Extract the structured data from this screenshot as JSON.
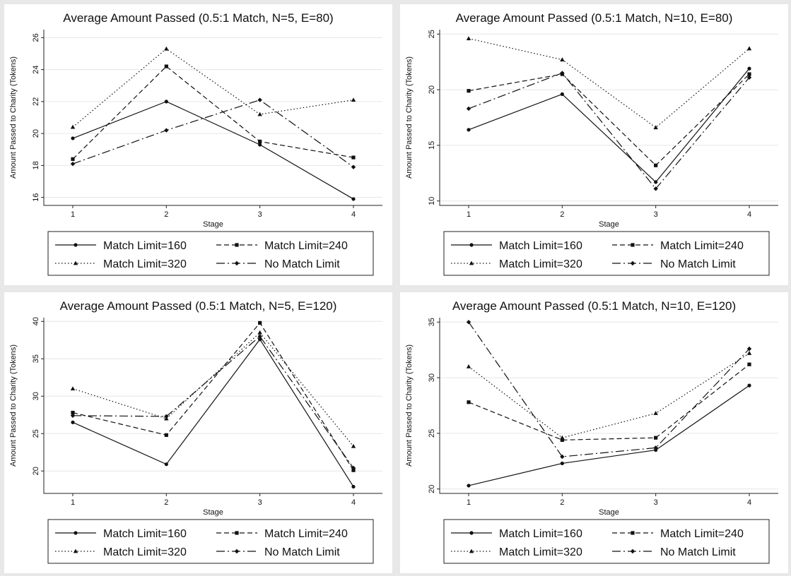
{
  "chart_data": [
    {
      "type": "line",
      "title": "Average Amount Passed (0.5:1 Match, N=5, E=80)",
      "xlabel": "Stage",
      "ylabel": "Amount Passed to Charity (Tokens)",
      "x": [
        1,
        2,
        3,
        4
      ],
      "ylim": [
        15.5,
        26.5
      ],
      "yticks": [
        16,
        18,
        20,
        22,
        24,
        26
      ],
      "grid": true,
      "legend_position": "bottom",
      "series": [
        {
          "name": "Match Limit=160",
          "style": "solid",
          "marker": "circle",
          "values": [
            19.7,
            22.0,
            19.3,
            15.9
          ]
        },
        {
          "name": "Match Limit=240",
          "style": "dash",
          "marker": "square",
          "values": [
            18.4,
            24.2,
            19.5,
            18.5
          ]
        },
        {
          "name": "Match Limit=320",
          "style": "dot",
          "marker": "triangle",
          "values": [
            20.4,
            25.3,
            21.2,
            22.1
          ]
        },
        {
          "name": "No Match Limit",
          "style": "longdash-dot",
          "marker": "diamond",
          "values": [
            18.1,
            20.2,
            22.1,
            17.9
          ]
        }
      ]
    },
    {
      "type": "line",
      "title": "Average Amount Passed (0.5:1 Match, N=10, E=80)",
      "xlabel": "Stage",
      "ylabel": "Amount Passed to Charity (Tokens)",
      "x": [
        1,
        2,
        3,
        4
      ],
      "ylim": [
        9.6,
        25.4
      ],
      "yticks": [
        10,
        15,
        20,
        25
      ],
      "grid": true,
      "legend_position": "bottom",
      "series": [
        {
          "name": "Match Limit=160",
          "style": "solid",
          "marker": "circle",
          "values": [
            16.4,
            19.6,
            11.7,
            21.9
          ]
        },
        {
          "name": "Match Limit=240",
          "style": "dash",
          "marker": "square",
          "values": [
            19.9,
            21.4,
            13.2,
            21.4
          ]
        },
        {
          "name": "Match Limit=320",
          "style": "dot",
          "marker": "triangle",
          "values": [
            24.6,
            22.7,
            16.6,
            23.7
          ]
        },
        {
          "name": "No Match Limit",
          "style": "longdash-dot",
          "marker": "diamond",
          "values": [
            18.3,
            21.5,
            11.1,
            21.1
          ]
        }
      ]
    },
    {
      "type": "line",
      "title": "Average Amount Passed (0.5:1 Match, N=5, E=120)",
      "xlabel": "Stage",
      "ylabel": "Amount Passed to Charity (Tokens)",
      "x": [
        1,
        2,
        3,
        4
      ],
      "ylim": [
        17.0,
        40.5
      ],
      "yticks": [
        20,
        25,
        30,
        35,
        40
      ],
      "grid": true,
      "legend_position": "bottom",
      "series": [
        {
          "name": "Match Limit=160",
          "style": "solid",
          "marker": "circle",
          "values": [
            26.5,
            20.9,
            37.6,
            17.9
          ]
        },
        {
          "name": "Match Limit=240",
          "style": "dash",
          "marker": "square",
          "values": [
            27.8,
            24.8,
            39.8,
            20.1
          ]
        },
        {
          "name": "Match Limit=320",
          "style": "dot",
          "marker": "triangle",
          "values": [
            31.0,
            27.0,
            38.5,
            23.3
          ]
        },
        {
          "name": "No Match Limit",
          "style": "longdash-dot",
          "marker": "diamond",
          "values": [
            27.4,
            27.3,
            38.0,
            20.4
          ]
        }
      ]
    },
    {
      "type": "line",
      "title": "Average Amount Passed (0.5:1 Match, N=10, E=120)",
      "xlabel": "Stage",
      "ylabel": "Amount Passed to Charity (Tokens)",
      "x": [
        1,
        2,
        3,
        4
      ],
      "ylim": [
        19.6,
        35.4
      ],
      "yticks": [
        20,
        25,
        30,
        35
      ],
      "grid": true,
      "legend_position": "bottom",
      "series": [
        {
          "name": "Match Limit=160",
          "style": "solid",
          "marker": "circle",
          "values": [
            20.3,
            22.3,
            23.5,
            29.3
          ]
        },
        {
          "name": "Match Limit=240",
          "style": "dash",
          "marker": "square",
          "values": [
            27.8,
            24.4,
            24.6,
            31.2
          ]
        },
        {
          "name": "Match Limit=320",
          "style": "dot",
          "marker": "triangle",
          "values": [
            31.0,
            24.6,
            26.8,
            32.2
          ]
        },
        {
          "name": "No Match Limit",
          "style": "longdash-dot",
          "marker": "diamond",
          "values": [
            35.0,
            22.9,
            23.7,
            32.6
          ]
        }
      ]
    }
  ]
}
